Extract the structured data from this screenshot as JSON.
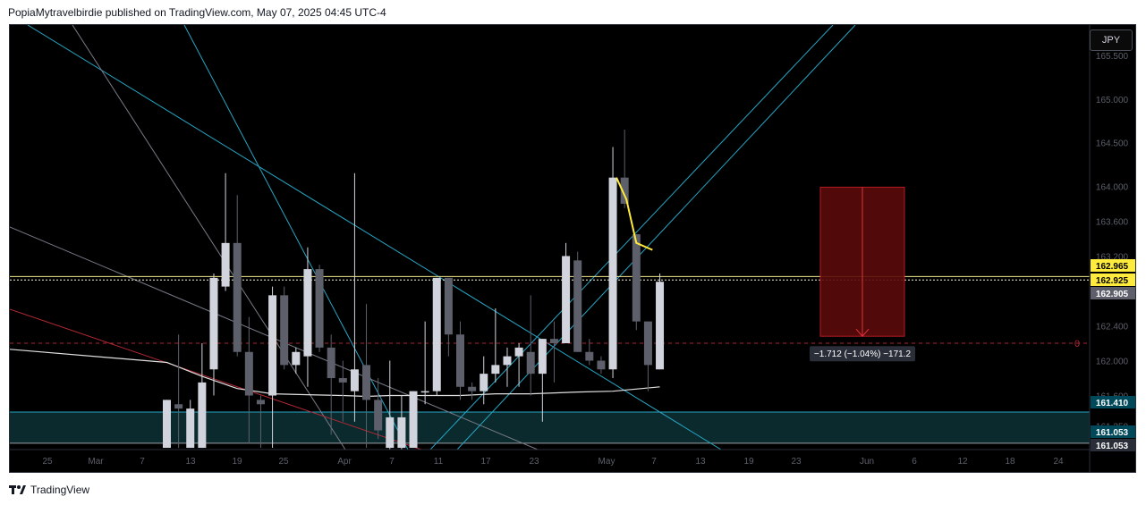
{
  "header": {
    "text": "PopiaMytravelbirdie published on TradingView.com, May 07, 2025 04:45 UTC-4"
  },
  "footer": {
    "brand": "TradingView"
  },
  "currency_label": "JPY",
  "colors": {
    "background": "#000000",
    "bull_candle": "#d1d4dc",
    "bear_candle": "#5d606b",
    "moving_average": "#e0e0e0",
    "trendline_cyan": "#26a6c4",
    "trendline_gray": "#787b86",
    "trendline_red": "#b22833",
    "highlight_yellow": "#ffeb3b",
    "support_zone": "#0a2a2e",
    "target_box": "#5a0a0a"
  },
  "chart_data": {
    "type": "candlestick",
    "ylim": [
      160.98,
      165.85
    ],
    "y_ticks": [
      "165.500",
      "165.000",
      "164.500",
      "164.000",
      "163.600",
      "163.200",
      "162.400",
      "162.000",
      "161.600",
      "161.250"
    ],
    "x_ticks": [
      "25",
      "Mar",
      "7",
      "13",
      "19",
      "25",
      "Apr",
      "7",
      "11",
      "17",
      "23",
      "May",
      "7",
      "13",
      "19",
      "23",
      "Jun",
      "6",
      "12",
      "18",
      "24"
    ],
    "candles": [
      {
        "o": 161.0,
        "h": 161.55,
        "l": 161.0,
        "c": 161.55
      },
      {
        "o": 161.5,
        "h": 162.3,
        "l": 161.0,
        "c": 161.45
      },
      {
        "o": 161.0,
        "h": 161.55,
        "l": 161.0,
        "c": 161.45
      },
      {
        "o": 161.0,
        "h": 162.2,
        "l": 161.0,
        "c": 161.75
      },
      {
        "o": 161.9,
        "h": 163.0,
        "l": 161.6,
        "c": 162.95
      },
      {
        "o": 162.85,
        "h": 164.15,
        "l": 162.8,
        "c": 163.35
      },
      {
        "o": 163.35,
        "h": 163.9,
        "l": 162.05,
        "c": 162.1
      },
      {
        "o": 162.1,
        "h": 162.5,
        "l": 161.05,
        "c": 161.6
      },
      {
        "o": 161.55,
        "h": 161.6,
        "l": 161.0,
        "c": 161.5
      },
      {
        "o": 161.6,
        "h": 162.85,
        "l": 161.0,
        "c": 162.75
      },
      {
        "o": 162.75,
        "h": 162.85,
        "l": 161.9,
        "c": 161.95
      },
      {
        "o": 161.95,
        "h": 162.15,
        "l": 161.85,
        "c": 162.1
      },
      {
        "o": 162.05,
        "h": 163.3,
        "l": 161.7,
        "c": 163.05
      },
      {
        "o": 163.05,
        "h": 163.1,
        "l": 162.1,
        "c": 162.15
      },
      {
        "o": 162.15,
        "h": 162.3,
        "l": 161.15,
        "c": 161.8
      },
      {
        "o": 161.8,
        "h": 162.0,
        "l": 161.3,
        "c": 161.75
      },
      {
        "o": 161.65,
        "h": 164.15,
        "l": 161.3,
        "c": 161.9
      },
      {
        "o": 161.95,
        "h": 162.65,
        "l": 161.0,
        "c": 161.55
      },
      {
        "o": 161.55,
        "h": 161.8,
        "l": 161.1,
        "c": 161.2
      },
      {
        "o": 161.0,
        "h": 162.0,
        "l": 160.95,
        "c": 161.35
      },
      {
        "o": 161.0,
        "h": 161.6,
        "l": 160.95,
        "c": 161.35
      },
      {
        "o": 161.0,
        "h": 161.65,
        "l": 161.0,
        "c": 161.65
      },
      {
        "o": 161.65,
        "h": 162.45,
        "l": 161.5,
        "c": 161.65
      },
      {
        "o": 161.65,
        "h": 162.95,
        "l": 161.6,
        "c": 162.95
      },
      {
        "o": 162.95,
        "h": 162.95,
        "l": 162.05,
        "c": 162.3
      },
      {
        "o": 162.3,
        "h": 162.45,
        "l": 161.55,
        "c": 161.7
      },
      {
        "o": 161.7,
        "h": 161.75,
        "l": 161.55,
        "c": 161.65
      },
      {
        "o": 161.65,
        "h": 162.05,
        "l": 161.5,
        "c": 161.85
      },
      {
        "o": 161.85,
        "h": 162.6,
        "l": 161.75,
        "c": 161.95
      },
      {
        "o": 161.95,
        "h": 162.15,
        "l": 161.7,
        "c": 162.05
      },
      {
        "o": 162.05,
        "h": 162.2,
        "l": 161.7,
        "c": 162.15
      },
      {
        "o": 162.1,
        "h": 162.75,
        "l": 161.6,
        "c": 161.85
      },
      {
        "o": 161.85,
        "h": 162.25,
        "l": 161.3,
        "c": 162.25
      },
      {
        "o": 162.25,
        "h": 162.45,
        "l": 161.75,
        "c": 162.2
      },
      {
        "o": 162.2,
        "h": 163.35,
        "l": 162.2,
        "c": 163.2
      },
      {
        "o": 163.15,
        "h": 163.25,
        "l": 162.1,
        "c": 162.1
      },
      {
        "o": 162.1,
        "h": 162.25,
        "l": 161.95,
        "c": 162.0
      },
      {
        "o": 162.0,
        "h": 162.05,
        "l": 161.85,
        "c": 161.9
      },
      {
        "o": 161.9,
        "h": 164.45,
        "l": 161.8,
        "c": 164.1
      },
      {
        "o": 164.1,
        "h": 164.65,
        "l": 163.75,
        "c": 163.8
      },
      {
        "o": 163.45,
        "h": 163.45,
        "l": 162.35,
        "c": 162.45
      },
      {
        "o": 162.45,
        "h": 162.45,
        "l": 161.65,
        "c": 161.95
      },
      {
        "o": 161.9,
        "h": 163.0,
        "l": 161.9,
        "c": 162.905
      }
    ],
    "moving_average": [
      [
        0,
        161.98
      ],
      [
        3,
        161.82
      ],
      [
        6,
        161.68
      ],
      [
        9,
        161.62
      ],
      [
        12,
        161.61
      ],
      [
        15,
        161.6
      ],
      [
        17,
        161.59
      ],
      [
        19,
        161.6
      ],
      [
        22,
        161.6
      ],
      [
        25,
        161.6
      ],
      [
        28,
        161.62
      ],
      [
        31,
        161.62
      ],
      [
        35,
        161.64
      ],
      [
        38,
        161.65
      ],
      [
        42,
        161.7
      ]
    ],
    "price_labels": [
      {
        "value": "162.965",
        "bg": "#ffeb3b",
        "fg": "#000000"
      },
      {
        "value": "162.925",
        "bg": "#ffeb3b",
        "fg": "#000000"
      },
      {
        "value": "162.905",
        "bg": "#5d606b",
        "fg": "#ffffff"
      },
      {
        "value": "161.410",
        "bg": "#00495a",
        "fg": "#ffffff"
      },
      {
        "value": "161.053",
        "bg": "#00495a",
        "fg": "#ffffff"
      },
      {
        "value": "161.053",
        "bg": "#2a2e39",
        "fg": "#ffffff"
      }
    ],
    "horizontal_levels": [
      162.965,
      162.925,
      162.2,
      161.41,
      161.053
    ],
    "support_zone": [
      161.053,
      161.41
    ],
    "target_box": {
      "from": 163.99,
      "to": 162.28
    },
    "measure_label": "−1.712 (−1.04%) −171.2",
    "zero_label": "0"
  }
}
